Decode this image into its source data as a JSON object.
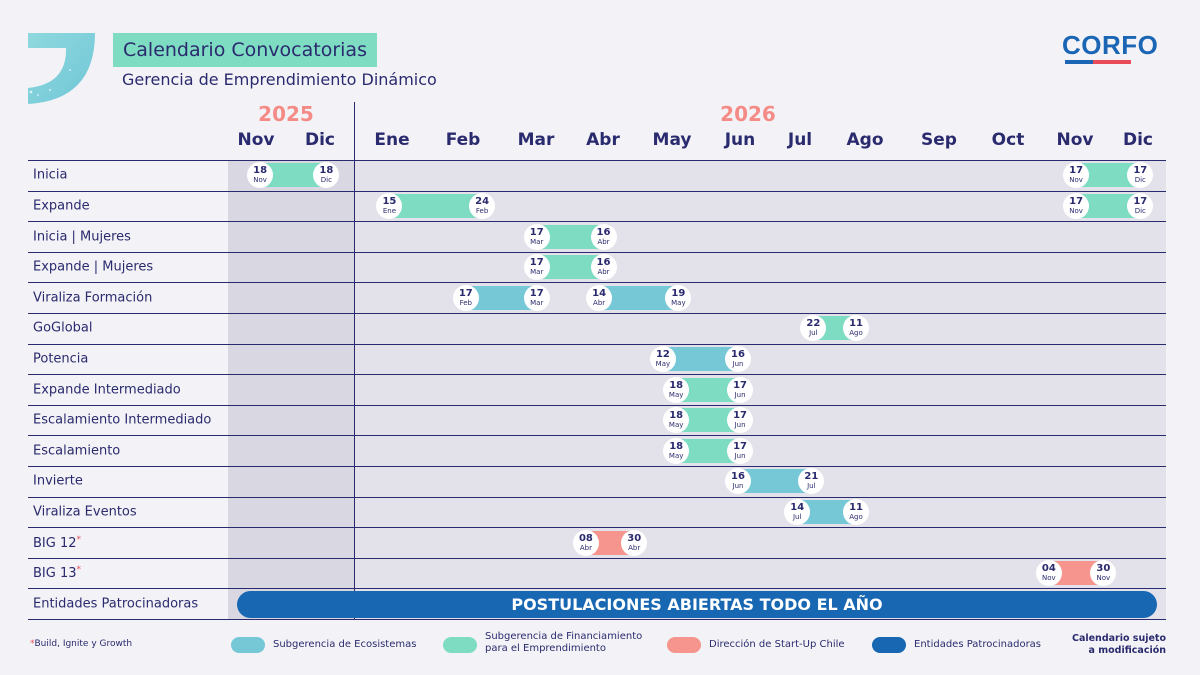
{
  "header": {
    "title": "Calendario Convocatorias",
    "subtitle": "Gerencia de Emprendimiento Dinámico",
    "logo": "CORFO"
  },
  "years": [
    "2025",
    "2026"
  ],
  "months": [
    "Nov",
    "Dic",
    "Ene",
    "Feb",
    "Mar",
    "Abr",
    "May",
    "Jun",
    "Jul",
    "Ago",
    "Sep",
    "Oct",
    "Nov",
    "Dic"
  ],
  "colors": {
    "ecosistemas": "#77c8d6",
    "financiamiento": "#7edcc2",
    "startup": "#f6958d",
    "patrocinadoras": "#1767b3"
  },
  "rows": [
    {
      "label": "Inicia",
      "bars": [
        {
          "color": "financiamiento",
          "start": {
            "day": "18",
            "month": "Nov"
          },
          "end": {
            "day": "18",
            "month": "Dic"
          }
        },
        {
          "color": "financiamiento",
          "start": {
            "day": "17",
            "month": "Nov"
          },
          "end": {
            "day": "17",
            "month": "Dic"
          }
        }
      ]
    },
    {
      "label": "Expande",
      "bars": [
        {
          "color": "financiamiento",
          "start": {
            "day": "15",
            "month": "Ene"
          },
          "end": {
            "day": "24",
            "month": "Feb"
          }
        },
        {
          "color": "financiamiento",
          "start": {
            "day": "17",
            "month": "Nov"
          },
          "end": {
            "day": "17",
            "month": "Dic"
          }
        }
      ]
    },
    {
      "label": "Inicia | Mujeres",
      "bars": [
        {
          "color": "financiamiento",
          "start": {
            "day": "17",
            "month": "Mar"
          },
          "end": {
            "day": "16",
            "month": "Abr"
          }
        }
      ]
    },
    {
      "label": "Expande | Mujeres",
      "bars": [
        {
          "color": "financiamiento",
          "start": {
            "day": "17",
            "month": "Mar"
          },
          "end": {
            "day": "16",
            "month": "Abr"
          }
        }
      ]
    },
    {
      "label": "Viraliza Formación",
      "bars": [
        {
          "color": "ecosistemas",
          "start": {
            "day": "17",
            "month": "Feb"
          },
          "end": {
            "day": "17",
            "month": "Mar"
          }
        },
        {
          "color": "ecosistemas",
          "start": {
            "day": "14",
            "month": "Abr"
          },
          "end": {
            "day": "19",
            "month": "May"
          }
        }
      ]
    },
    {
      "label": "GoGlobal",
      "bars": [
        {
          "color": "financiamiento",
          "start": {
            "day": "22",
            "month": "Jul"
          },
          "end": {
            "day": "11",
            "month": "Ago"
          }
        }
      ]
    },
    {
      "label": "Potencia",
      "bars": [
        {
          "color": "ecosistemas",
          "start": {
            "day": "12",
            "month": "May"
          },
          "end": {
            "day": "16",
            "month": "Jun"
          }
        }
      ]
    },
    {
      "label": "Expande Intermediado",
      "bars": [
        {
          "color": "financiamiento",
          "start": {
            "day": "18",
            "month": "May"
          },
          "end": {
            "day": "17",
            "month": "Jun"
          }
        }
      ]
    },
    {
      "label": "Escalamiento Intermediado",
      "bars": [
        {
          "color": "financiamiento",
          "start": {
            "day": "18",
            "month": "May"
          },
          "end": {
            "day": "17",
            "month": "Jun"
          }
        }
      ]
    },
    {
      "label": "Escalamiento",
      "bars": [
        {
          "color": "financiamiento",
          "start": {
            "day": "18",
            "month": "May"
          },
          "end": {
            "day": "17",
            "month": "Jun"
          }
        }
      ]
    },
    {
      "label": "Invierte",
      "bars": [
        {
          "color": "ecosistemas",
          "start": {
            "day": "16",
            "month": "Jun"
          },
          "end": {
            "day": "21",
            "month": "Jul"
          }
        }
      ]
    },
    {
      "label": "Viraliza Eventos",
      "bars": [
        {
          "color": "ecosistemas",
          "start": {
            "day": "14",
            "month": "Jul"
          },
          "end": {
            "day": "11",
            "month": "Ago"
          }
        }
      ]
    },
    {
      "label": "BIG 12",
      "asterisk": "*",
      "bars": [
        {
          "color": "startup",
          "start": {
            "day": "08",
            "month": "Abr"
          },
          "end": {
            "day": "30",
            "month": "Abr"
          }
        }
      ]
    },
    {
      "label": "BIG 13",
      "asterisk": "*",
      "bars": [
        {
          "color": "startup",
          "start": {
            "day": "04",
            "month": "Nov"
          },
          "end": {
            "day": "30",
            "month": "Nov"
          }
        }
      ]
    },
    {
      "label": "Entidades Patrocinadoras",
      "bars": []
    }
  ],
  "banner": "POSTULACIONES ABIERTAS TODO EL AÑO",
  "footnote": {
    "asterisk": "*",
    "text": "Build, Ignite y Growth"
  },
  "legend": [
    {
      "key": "ecosistemas",
      "label": "Subgerencia de Ecosistemas"
    },
    {
      "key": "financiamiento",
      "label_line1": "Subgerencia de Financiamiento",
      "label_line2": "para el Emprendimiento"
    },
    {
      "key": "startup",
      "label": "Dirección de Start-Up Chile"
    },
    {
      "key": "patrocinadoras",
      "label": "Entidades Patrocinadoras"
    }
  ],
  "disclaimer": {
    "line1": "Calendario sujeto",
    "line2": "a modificación"
  }
}
